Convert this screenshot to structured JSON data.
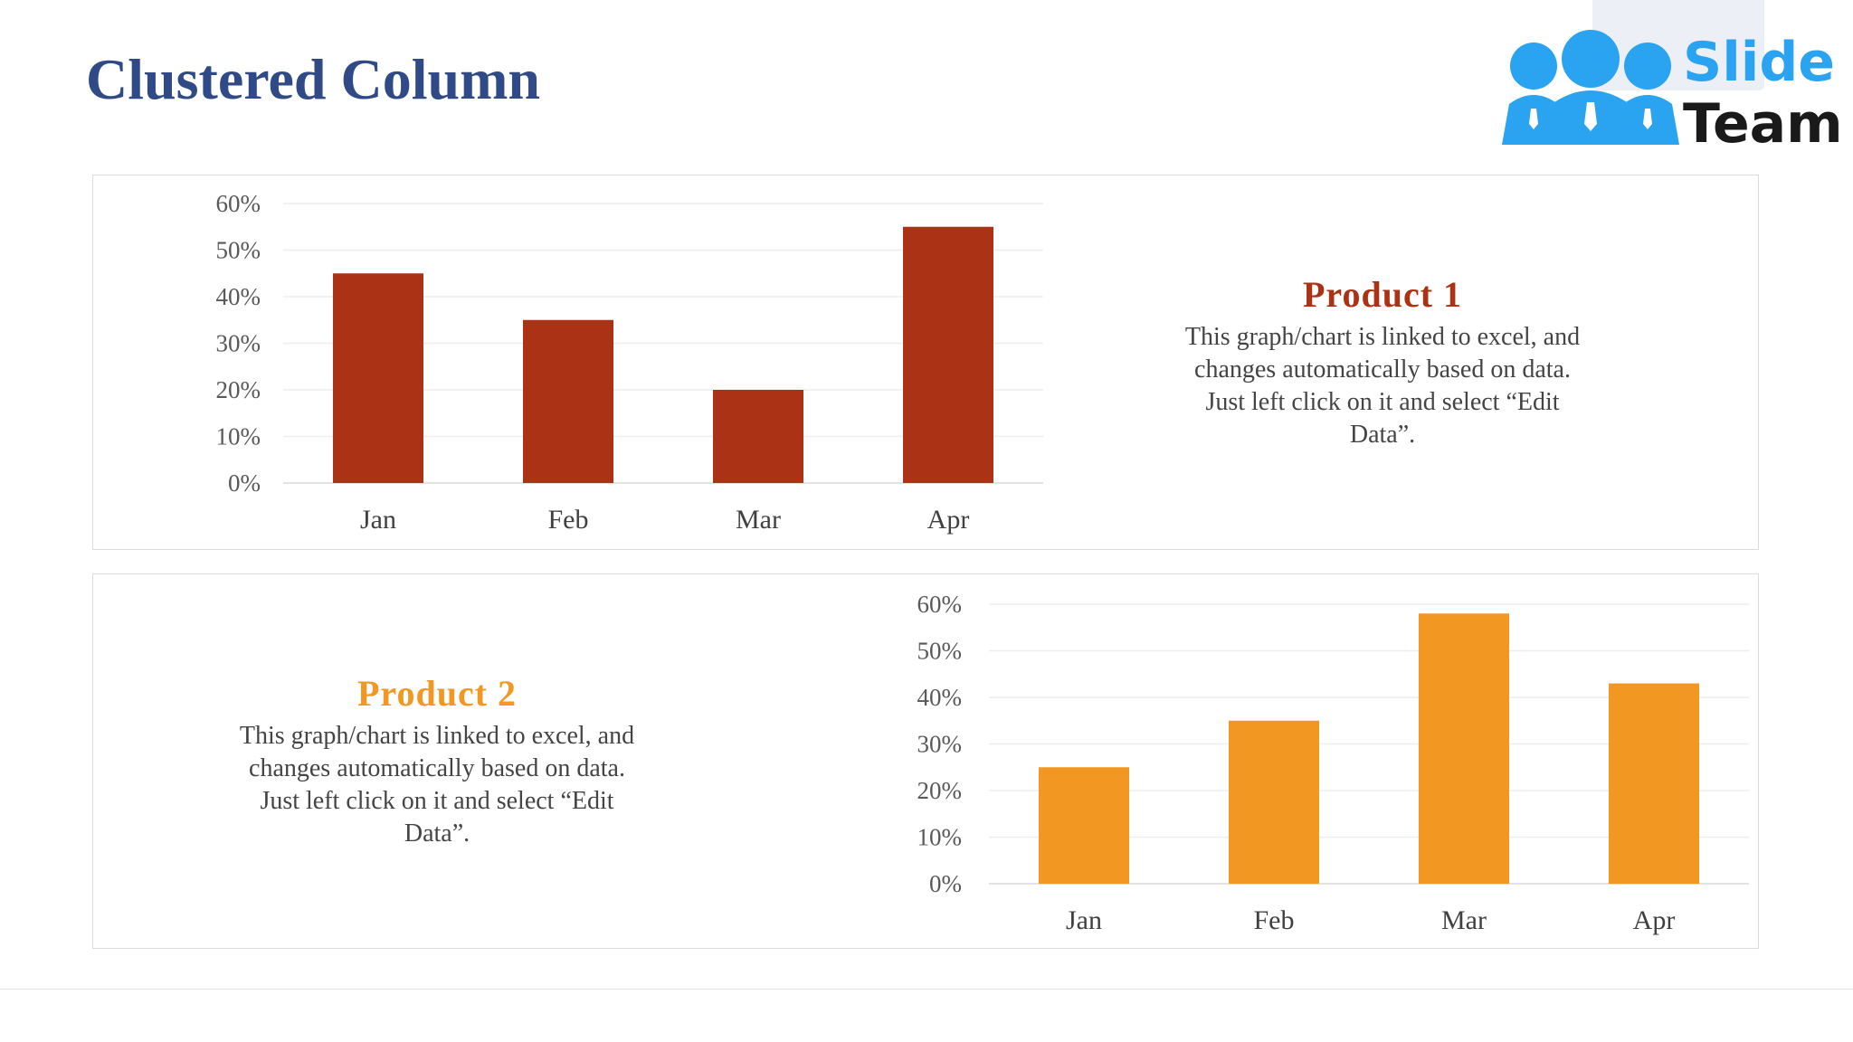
{
  "page": {
    "title": "Clustered Column"
  },
  "logo": {
    "word1": "Slide",
    "word2": "Team"
  },
  "colors": {
    "title": "#2f4a86",
    "product1": "#ab3214",
    "product2": "#f29722",
    "logo_blue": "#2aa3f0"
  },
  "products": [
    {
      "heading": "Product 1",
      "body": "This graph/chart is linked to excel, and changes automatically based on data. Just left click on it and select “Edit Data”."
    },
    {
      "heading": "Product 2",
      "body": "This graph/chart is linked to excel, and changes automatically based on data. Just left click on it and select “Edit Data”."
    }
  ],
  "chart_data": [
    {
      "type": "bar",
      "categories": [
        "Jan",
        "Feb",
        "Mar",
        "Apr"
      ],
      "series": [
        {
          "values": [
            45,
            35,
            20,
            55
          ]
        }
      ],
      "yticks": [
        "0%",
        "10%",
        "20%",
        "30%",
        "40%",
        "50%",
        "60%"
      ],
      "ylim": [
        0,
        60
      ],
      "grid": true,
      "color": "#ab3214"
    },
    {
      "type": "bar",
      "categories": [
        "Jan",
        "Feb",
        "Mar",
        "Apr"
      ],
      "series": [
        {
          "values": [
            25,
            35,
            58,
            43
          ]
        }
      ],
      "yticks": [
        "0%",
        "10%",
        "20%",
        "30%",
        "40%",
        "50%",
        "60%"
      ],
      "ylim": [
        0,
        60
      ],
      "grid": true,
      "color": "#f29722"
    }
  ]
}
